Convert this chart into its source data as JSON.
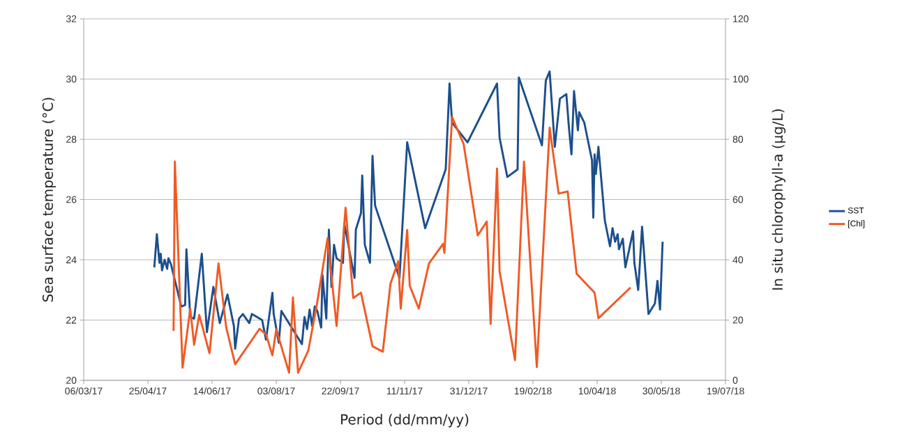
{
  "chart_data": {
    "type": "line",
    "xlabel": "Period (dd/mm/yy)",
    "ylabel": "Sea surface temperature (°C)",
    "y2label": "In situ chlorophyll-a (µg/L)",
    "xlim": [
      "2017-03-06",
      "2018-07-19"
    ],
    "xticks": [
      {
        "value": "2017-03-06",
        "label": "06/03/17"
      },
      {
        "value": "2017-04-25",
        "label": "25/04/17"
      },
      {
        "value": "2017-06-14",
        "label": "14/06/17"
      },
      {
        "value": "2017-08-03",
        "label": "03/08/17"
      },
      {
        "value": "2017-09-22",
        "label": "22/09/17"
      },
      {
        "value": "2017-11-11",
        "label": "11/11/17"
      },
      {
        "value": "2017-12-31",
        "label": "31/12/17"
      },
      {
        "value": "2018-02-19",
        "label": "19/02/18"
      },
      {
        "value": "2018-04-10",
        "label": "10/04/18"
      },
      {
        "value": "2018-05-30",
        "label": "30/05/18"
      },
      {
        "value": "2018-07-19",
        "label": "19/07/18"
      }
    ],
    "ylim": [
      20,
      32
    ],
    "yticks": [
      20,
      22,
      24,
      26,
      28,
      30,
      32
    ],
    "y2lim": [
      0,
      120
    ],
    "y2ticks": [
      0,
      20,
      40,
      60,
      80,
      100,
      120
    ],
    "grid": "y",
    "legend": "right",
    "marker": "none",
    "line_style": "solid",
    "series": [
      {
        "name": "SST",
        "color": "#1c4f8c",
        "axis": "y",
        "x": [
          "2017-04-30",
          "2017-05-02",
          "2017-05-04",
          "2017-05-05",
          "2017-05-06",
          "2017-05-08",
          "2017-05-10",
          "2017-05-11",
          "2017-05-13",
          "2017-05-21",
          "2017-05-24",
          "2017-05-25",
          "2017-05-28",
          "2017-05-31",
          "2017-06-06",
          "2017-06-10",
          "2017-06-15",
          "2017-06-20",
          "2017-06-26",
          "2017-07-01",
          "2017-07-02",
          "2017-07-05",
          "2017-07-08",
          "2017-07-13",
          "2017-07-15",
          "2017-07-23",
          "2017-07-26",
          "2017-07-31",
          "2017-08-01",
          "2017-08-05",
          "2017-08-07",
          "2017-08-23",
          "2017-08-25",
          "2017-08-27",
          "2017-08-29",
          "2017-08-31",
          "2017-09-02",
          "2017-09-04",
          "2017-09-07",
          "2017-09-08",
          "2017-09-11",
          "2017-09-13",
          "2017-09-15",
          "2017-09-17",
          "2017-09-19",
          "2017-09-24",
          "2017-09-25",
          "2017-10-03",
          "2017-10-04",
          "2017-10-08",
          "2017-10-09",
          "2017-10-11",
          "2017-10-15",
          "2017-10-17",
          "2017-10-19",
          "2017-11-07",
          "2017-11-13",
          "2017-11-27",
          "2017-12-13",
          "2017-12-16",
          "2017-12-18",
          "2017-12-30",
          "2018-01-22",
          "2018-01-24",
          "2018-01-30",
          "2018-02-07",
          "2018-02-08",
          "2018-02-26",
          "2018-03-01",
          "2018-03-04",
          "2018-03-08",
          "2018-03-12",
          "2018-03-17",
          "2018-03-19",
          "2018-03-21",
          "2018-03-23",
          "2018-03-26",
          "2018-03-27",
          "2018-03-31",
          "2018-04-06",
          "2018-04-07",
          "2018-04-08",
          "2018-04-09",
          "2018-04-11",
          "2018-04-16",
          "2018-04-20",
          "2018-04-22",
          "2018-04-24",
          "2018-04-26",
          "2018-04-27",
          "2018-04-30",
          "2018-05-02",
          "2018-05-08",
          "2018-05-09",
          "2018-05-12",
          "2018-05-15",
          "2018-05-20",
          "2018-05-25",
          "2018-05-27",
          "2018-05-29",
          "2018-05-31"
        ],
        "values": [
          23.75,
          24.85,
          23.9,
          24.2,
          23.65,
          24.0,
          23.7,
          24.05,
          23.85,
          22.45,
          22.5,
          24.35,
          22.1,
          22.05,
          24.2,
          21.6,
          23.1,
          21.9,
          22.85,
          21.8,
          21.05,
          22.05,
          22.2,
          21.9,
          22.2,
          22.0,
          21.35,
          22.9,
          22.2,
          21.25,
          22.3,
          21.2,
          22.1,
          21.7,
          22.35,
          21.8,
          22.45,
          22.3,
          21.75,
          23.5,
          22.05,
          25.0,
          23.1,
          24.5,
          24.05,
          23.9,
          25.2,
          23.4,
          25.0,
          25.55,
          26.8,
          24.5,
          23.9,
          27.45,
          25.8,
          23.4,
          27.9,
          25.05,
          27.0,
          29.85,
          28.55,
          27.9,
          29.85,
          28.05,
          26.75,
          27.0,
          30.05,
          27.8,
          29.95,
          30.25,
          27.75,
          29.35,
          29.5,
          28.4,
          27.5,
          29.6,
          28.3,
          28.9,
          28.55,
          27.3,
          25.4,
          27.5,
          26.85,
          27.75,
          25.3,
          24.45,
          25.05,
          24.6,
          24.85,
          24.35,
          24.7,
          23.75,
          24.95,
          23.9,
          23.0,
          25.1,
          22.2,
          22.55,
          23.3,
          22.35,
          24.6
        ]
      },
      {
        "name": "[Chl]",
        "color": "#f05a24",
        "axis": "y2",
        "x": [
          "2017-05-15",
          "2017-05-16",
          "2017-05-22",
          "2017-05-28",
          "2017-05-31",
          "2017-06-04",
          "2017-06-12",
          "2017-06-19",
          "2017-06-25",
          "2017-07-02",
          "2017-07-21",
          "2017-07-26",
          "2017-07-31",
          "2017-08-03",
          "2017-08-13",
          "2017-08-16",
          "2017-08-20",
          "2017-08-28",
          "2017-09-04",
          "2017-09-12",
          "2017-09-19",
          "2017-09-26",
          "2017-10-02",
          "2017-10-08",
          "2017-10-17",
          "2017-10-25",
          "2017-10-31",
          "2017-11-06",
          "2017-11-08",
          "2017-11-13",
          "2017-11-15",
          "2017-11-22",
          "2017-11-30",
          "2017-12-11",
          "2017-12-12",
          "2017-12-18",
          "2017-12-27",
          "2018-01-07",
          "2018-01-14",
          "2018-01-17",
          "2018-01-22",
          "2018-01-24",
          "2018-02-05",
          "2018-02-12",
          "2018-02-22",
          "2018-03-04",
          "2018-03-11",
          "2018-03-18",
          "2018-03-25",
          "2018-04-08",
          "2018-04-11",
          "2018-05-06"
        ],
        "values": [
          16.4,
          72.6,
          4.2,
          23.8,
          11.8,
          21.7,
          9.0,
          38.8,
          17.6,
          5.3,
          17.1,
          15.3,
          8.3,
          16.9,
          2.5,
          27.5,
          2.5,
          9.9,
          26.1,
          47.2,
          18.0,
          57.3,
          27.3,
          29.1,
          11.3,
          9.5,
          32.1,
          39.5,
          23.8,
          49.9,
          31.4,
          23.8,
          38.8,
          45.3,
          42.3,
          87.4,
          78.4,
          48.1,
          52.7,
          18.7,
          70.3,
          36.1,
          6.7,
          72.6,
          4.4,
          83.9,
          62.0,
          62.7,
          35.4,
          29.1,
          20.6,
          30.8
        ]
      }
    ]
  }
}
